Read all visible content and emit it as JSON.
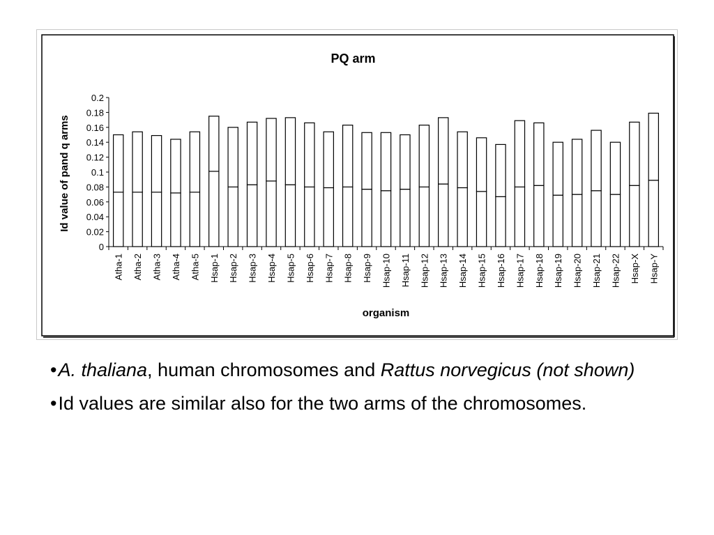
{
  "chart_data": {
    "type": "bar",
    "title": "PQ arm",
    "xlabel": "organism",
    "ylabel": "Id value of pand q arms",
    "ylim": [
      0,
      0.2
    ],
    "yticks": [
      "0",
      "0.02",
      "0.04",
      "0.06",
      "0.08",
      "0.1",
      "0.12",
      "0.14",
      "0.16",
      "0.18",
      "0.2"
    ],
    "categories": [
      "Atha-1",
      "Atha-2",
      "Atha-3",
      "Atha-4",
      "Atha-5",
      "Hsap-1",
      "Hsap-2",
      "Hsap-3",
      "Hsap-4",
      "Hsap-5",
      "Hsap-6",
      "Hsap-7",
      "Hsap-8",
      "Hsap-9",
      "Hsap-10",
      "Hsap-11",
      "Hsap-12",
      "Hsap-13",
      "Hsap-14",
      "Hsap-15",
      "Hsap-16",
      "Hsap-17",
      "Hsap-18",
      "Hsap-19",
      "Hsap-20",
      "Hsap-21",
      "Hsap-22",
      "Hsap-X",
      "Hsap-Y"
    ],
    "series": [
      {
        "values": [
          0.073,
          0.073,
          0.073,
          0.072,
          0.073,
          0.101,
          0.08,
          0.083,
          0.088,
          0.083,
          0.08,
          0.079,
          0.08,
          0.077,
          0.075,
          0.077,
          0.08,
          0.084,
          0.079,
          0.074,
          0.067,
          0.08,
          0.082,
          0.069,
          0.07,
          0.075,
          0.07,
          0.082,
          0.089
        ]
      },
      {
        "values": [
          0.077,
          0.081,
          0.076,
          0.072,
          0.081,
          0.074,
          0.08,
          0.084,
          0.084,
          0.09,
          0.086,
          0.075,
          0.083,
          0.076,
          0.078,
          0.073,
          0.083,
          0.089,
          0.075,
          0.072,
          0.07,
          0.089,
          0.084,
          0.071,
          0.074,
          0.081,
          0.07,
          0.085,
          0.09
        ]
      }
    ],
    "stacked": true,
    "grid": false,
    "legend": "none",
    "colors": {
      "bar_fill": "#ffffff",
      "bar_stroke": "#000000"
    }
  },
  "text": {
    "bullet1": {
      "dot": "•",
      "species": "A. thaliana",
      "after_species": ", human chromosomes and ",
      "rattus": "Rattus norvegicus (not shown)"
    },
    "bullet2": {
      "dot": "•",
      "text": "Id values are similar also for the two arms of the chromosomes."
    }
  }
}
